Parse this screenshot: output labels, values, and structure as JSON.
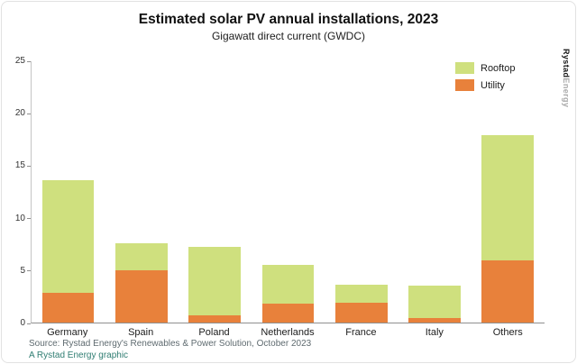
{
  "brand": {
    "part1": "Rystad",
    "part2": "Energy"
  },
  "footer": {
    "source": "Source: Rystad Energy's Renewables & Power Solution, October 2023",
    "credit": "A Rystad Energy graphic"
  },
  "chart_data": {
    "type": "bar",
    "stacked": true,
    "title": "Estimated solar PV annual installations, 2023",
    "subtitle": "Gigawatt direct current (GWDC)",
    "categories": [
      "Germany",
      "Spain",
      "Poland",
      "Netherlands",
      "France",
      "Italy",
      "Others"
    ],
    "series": [
      {
        "name": "Utility",
        "color": "#e8813b",
        "values": [
          2.8,
          5.0,
          0.7,
          1.8,
          1.9,
          0.4,
          5.9
        ]
      },
      {
        "name": "Rooftop",
        "color": "#cfe07e",
        "values": [
          10.8,
          2.6,
          6.5,
          3.7,
          1.7,
          3.1,
          12.0
        ]
      }
    ],
    "legend": [
      {
        "label": "Rooftop",
        "color": "#cfe07e"
      },
      {
        "label": "Utility",
        "color": "#e8813b"
      }
    ],
    "xlabel": "",
    "ylabel": "",
    "ylim": [
      0,
      25
    ],
    "yticks": [
      0,
      5,
      10,
      15,
      20,
      25
    ],
    "legend_position": "top-right",
    "grid": false
  }
}
